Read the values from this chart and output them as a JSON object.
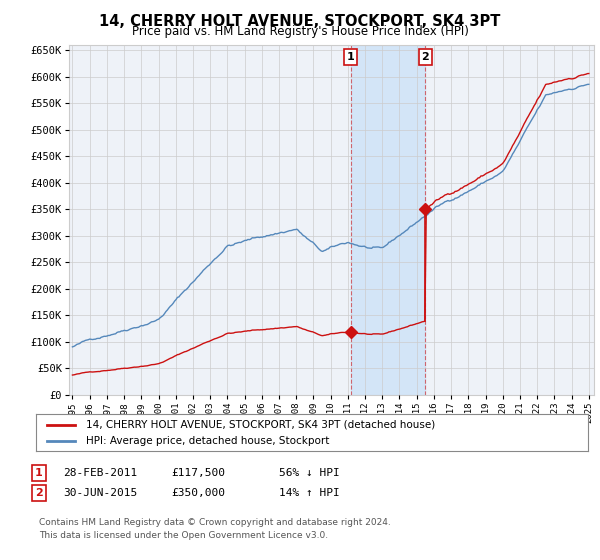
{
  "title": "14, CHERRY HOLT AVENUE, STOCKPORT, SK4 3PT",
  "subtitle": "Price paid vs. HM Land Registry's House Price Index (HPI)",
  "ylim": [
    0,
    660000
  ],
  "yticks": [
    0,
    50000,
    100000,
    150000,
    200000,
    250000,
    300000,
    350000,
    400000,
    450000,
    500000,
    550000,
    600000,
    650000
  ],
  "ytick_labels": [
    "£0",
    "£50K",
    "£100K",
    "£150K",
    "£200K",
    "£250K",
    "£300K",
    "£350K",
    "£400K",
    "£450K",
    "£500K",
    "£550K",
    "£600K",
    "£650K"
  ],
  "hpi_color": "#5588bb",
  "price_color": "#cc1111",
  "sale1_year": 2011.16,
  "sale1_price": 117500,
  "sale2_year": 2015.5,
  "sale2_price": 350000,
  "legend_line1": "14, CHERRY HOLT AVENUE, STOCKPORT, SK4 3PT (detached house)",
  "legend_line2": "HPI: Average price, detached house, Stockport",
  "ann1_box": "1",
  "ann1_date": "28-FEB-2011",
  "ann1_price": "£117,500",
  "ann1_pct": "56% ↓ HPI",
  "ann2_box": "2",
  "ann2_date": "30-JUN-2015",
  "ann2_price": "£350,000",
  "ann2_pct": "14% ↑ HPI",
  "footer1": "Contains HM Land Registry data © Crown copyright and database right 2024.",
  "footer2": "This data is licensed under the Open Government Licence v3.0.",
  "bg_color": "#ffffff",
  "plot_bg": "#eef2f8",
  "shade_color": "#d0e4f7",
  "grid_color": "#cccccc"
}
